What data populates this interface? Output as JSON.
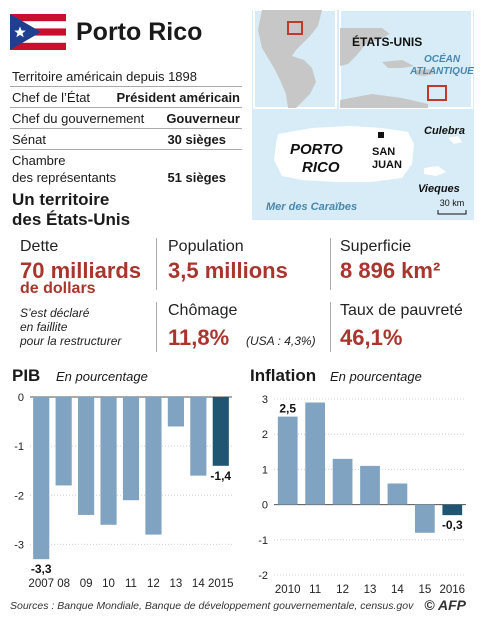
{
  "header": {
    "title": "Porto Rico"
  },
  "facts": [
    {
      "key": "Territoire américain depuis 1898",
      "value": ""
    },
    {
      "key": "Chef de l’État",
      "value": "Président américain"
    },
    {
      "key": "Chef du gouvernement",
      "value": "Gouverneur"
    },
    {
      "key": "Sénat",
      "value": "30 sièges"
    },
    {
      "key": "Chambre\ndes représentants",
      "value": "51 sièges"
    }
  ],
  "map": {
    "us_label": "ÉTATS-UNIS",
    "ocean_label_1": "OCÉAN",
    "ocean_label_2": "ATLANTIQUE",
    "island_label_1": "PORTO",
    "island_label_2": "RICO",
    "capital_1": "SAN",
    "capital_2": "JUAN",
    "culebra": "Culebra",
    "vieques": "Vieques",
    "sea": "Mer des Caraïbes",
    "scale": "30 km",
    "colors": {
      "sea": "#d7ecf6",
      "land": "#ffffff",
      "region": "#c7c7c7",
      "marker": "#c0392b"
    }
  },
  "territory": {
    "heading_1": "Un territoire",
    "heading_2": "des États-Unis"
  },
  "stats": {
    "dette_label": "Dette",
    "dette_value_1": "70 milliards",
    "dette_value_2": "de dollars",
    "dette_note_1": "S’est déclaré",
    "dette_note_2": "en faillite",
    "dette_note_3": "pour la restructurer",
    "population_label": "Population",
    "population_value": "3,5 millions",
    "superficie_label": "Superficie",
    "superficie_value": "8 896 km²",
    "chomage_label": "Chômage",
    "chomage_value": "11,8%",
    "chomage_usa": "(USA : 4,3%)",
    "pauvrete_label": "Taux de pauvreté",
    "pauvrete_value": "46,1%"
  },
  "colors": {
    "accent": "#a8362e",
    "bar": "#7fa3c0",
    "bar_last": "#215672"
  },
  "chart_data": [
    {
      "type": "bar",
      "title": "PIB",
      "subtitle": "En pourcentage",
      "categories": [
        "2007",
        "08",
        "09",
        "10",
        "11",
        "12",
        "13",
        "14",
        "2015"
      ],
      "values": [
        -3.3,
        -1.8,
        -2.4,
        -2.6,
        -2.1,
        -2.8,
        -0.6,
        -1.6,
        -1.4
      ],
      "data_labels": [
        {
          "index": 0,
          "text": "-3,3"
        },
        {
          "index": 8,
          "text": "-1,4"
        }
      ],
      "ylim": [
        -3.5,
        0
      ],
      "yticks": [
        0,
        -1,
        -2,
        -3
      ],
      "ytick_labels": [
        "0",
        "-1",
        "-2",
        "-3"
      ],
      "grid": true
    },
    {
      "type": "bar",
      "title": "Inflation",
      "subtitle": "En pourcentage",
      "categories": [
        "2010",
        "11",
        "12",
        "13",
        "14",
        "15",
        "2016"
      ],
      "values": [
        2.5,
        2.9,
        1.3,
        1.1,
        0.6,
        -0.8,
        -0.3
      ],
      "data_labels": [
        {
          "index": 0,
          "text": "2,5"
        },
        {
          "index": 6,
          "text": "-0,3"
        }
      ],
      "ylim": [
        -2,
        3
      ],
      "yticks": [
        3,
        2,
        1,
        0,
        -1,
        -2
      ],
      "ytick_labels": [
        "3",
        "2",
        "1",
        "0",
        "-1",
        "-2"
      ],
      "grid": true
    }
  ],
  "footer": {
    "source": "Sources : Banque Mondiale, Banque de développement gouvernementale, census.gov",
    "copyright": "©",
    "agency": "AFP"
  }
}
